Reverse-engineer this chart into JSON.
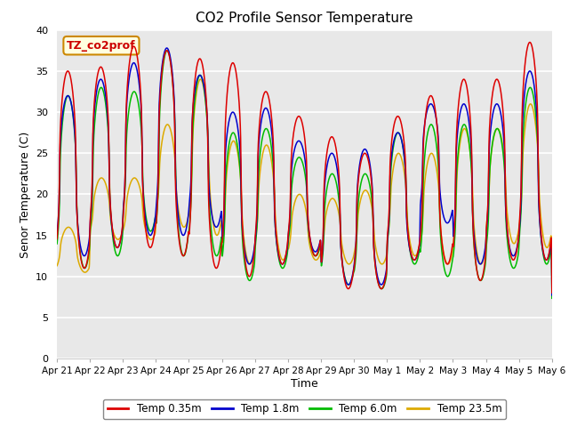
{
  "title": "CO2 Profile Sensor Temperature",
  "ylabel": "Senor Temperature (C)",
  "xlabel": "Time",
  "legend_label": "TZ_co2prof",
  "ylim": [
    0,
    40
  ],
  "background_color": "#e8e8e8",
  "fig_background": "#ffffff",
  "legend_entries": [
    "Temp 0.35m",
    "Temp 1.8m",
    "Temp 6.0m",
    "Temp 23.5m"
  ],
  "line_colors": [
    "#dd0000",
    "#0000cc",
    "#00bb00",
    "#ddaa00"
  ],
  "xtick_labels": [
    "Apr 21",
    "Apr 22",
    "Apr 23",
    "Apr 24",
    "Apr 25",
    "Apr 26",
    "Apr 27",
    "Apr 28",
    "Apr 29",
    "Apr 30",
    "May 1",
    "May 2",
    "May 3",
    "May 4",
    "May 5",
    "May 6"
  ],
  "ytick_values": [
    0,
    5,
    10,
    15,
    20,
    25,
    30,
    35,
    40
  ],
  "grid_color": "#ffffff",
  "spine_color": "#cccccc"
}
